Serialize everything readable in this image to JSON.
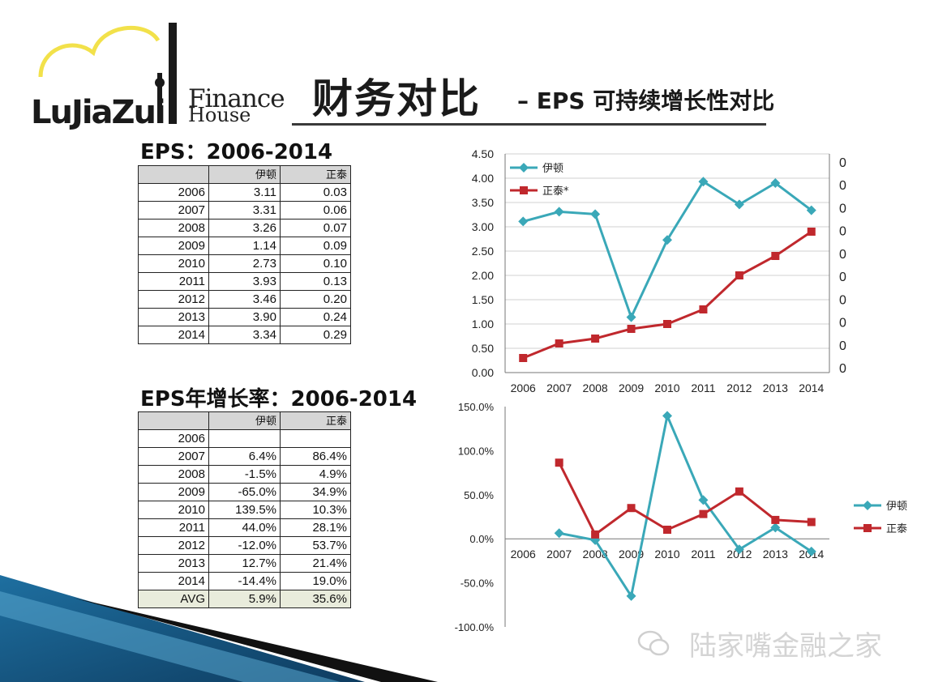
{
  "logo": {
    "word": "LujiaZui",
    "finance": "Finance",
    "house": "House"
  },
  "title": {
    "main": "财务对比",
    "sub": "– EPS 可持续增长性对比"
  },
  "eps_table": {
    "heading": "EPS：2006-2014",
    "columns": [
      "",
      "伊顿",
      "正泰"
    ],
    "rows": [
      [
        "2006",
        "3.11",
        "0.03"
      ],
      [
        "2007",
        "3.31",
        "0.06"
      ],
      [
        "2008",
        "3.26",
        "0.07"
      ],
      [
        "2009",
        "1.14",
        "0.09"
      ],
      [
        "2010",
        "2.73",
        "0.10"
      ],
      [
        "2011",
        "3.93",
        "0.13"
      ],
      [
        "2012",
        "3.46",
        "0.20"
      ],
      [
        "2013",
        "3.90",
        "0.24"
      ],
      [
        "2014",
        "3.34",
        "0.29"
      ]
    ]
  },
  "growth_table": {
    "heading": "EPS年增长率：2006-2014",
    "columns": [
      "",
      "伊顿",
      "正泰"
    ],
    "rows": [
      [
        "2006",
        "",
        ""
      ],
      [
        "2007",
        "6.4%",
        "86.4%"
      ],
      [
        "2008",
        "-1.5%",
        "4.9%"
      ],
      [
        "2009",
        "-65.0%",
        "34.9%"
      ],
      [
        "2010",
        "139.5%",
        "10.3%"
      ],
      [
        "2011",
        "44.0%",
        "28.1%"
      ],
      [
        "2012",
        "-12.0%",
        "53.7%"
      ],
      [
        "2013",
        "12.7%",
        "21.4%"
      ],
      [
        "2014",
        "-14.4%",
        "19.0%"
      ]
    ],
    "avg_row": [
      "AVG",
      "5.9%",
      "35.6%"
    ]
  },
  "chart_data": [
    {
      "type": "line",
      "x": [
        "2006",
        "2007",
        "2008",
        "2009",
        "2010",
        "2011",
        "2012",
        "2013",
        "2014"
      ],
      "y_left_ticks": [
        "0.00",
        "0.50",
        "1.00",
        "1.50",
        "2.00",
        "2.50",
        "3.00",
        "3.50",
        "4.00",
        "4.50"
      ],
      "y_right_ticks": [
        "0.00",
        "0.05",
        "0.10",
        "0.15",
        "0.20",
        "0.25",
        "0.30",
        "0.35",
        "0.40",
        "0.45"
      ],
      "ylim_left": [
        0,
        4.5
      ],
      "ylim_right": [
        0,
        0.45
      ],
      "legend_position": "top-left",
      "series": [
        {
          "name": "伊顿",
          "axis": "left",
          "color": "#3aa8b8",
          "marker": "diamond",
          "values": [
            3.11,
            3.31,
            3.26,
            1.14,
            2.73,
            3.93,
            3.46,
            3.9,
            3.34
          ]
        },
        {
          "name": "正泰*",
          "axis": "right",
          "color": "#c0282d",
          "marker": "square",
          "values": [
            0.03,
            0.06,
            0.07,
            0.09,
            0.1,
            0.13,
            0.2,
            0.24,
            0.29
          ]
        }
      ]
    },
    {
      "type": "line",
      "x": [
        "2006",
        "2007",
        "2008",
        "2009",
        "2010",
        "2011",
        "2012",
        "2013",
        "2014"
      ],
      "y_ticks": [
        "-100.0%",
        "-50.0%",
        "0.0%",
        "50.0%",
        "100.0%",
        "150.0%"
      ],
      "ylim": [
        -100,
        150
      ],
      "legend_position": "right",
      "series": [
        {
          "name": "伊顿",
          "color": "#3aa8b8",
          "marker": "diamond",
          "values": [
            null,
            6.4,
            -1.5,
            -65.0,
            139.5,
            44.0,
            -12.0,
            12.7,
            -14.4
          ]
        },
        {
          "name": "正泰",
          "color": "#c0282d",
          "marker": "square",
          "values": [
            null,
            86.4,
            4.9,
            34.9,
            10.3,
            28.1,
            53.7,
            21.4,
            19.0
          ]
        }
      ]
    }
  ],
  "watermark": "陆家嘴金融之家"
}
